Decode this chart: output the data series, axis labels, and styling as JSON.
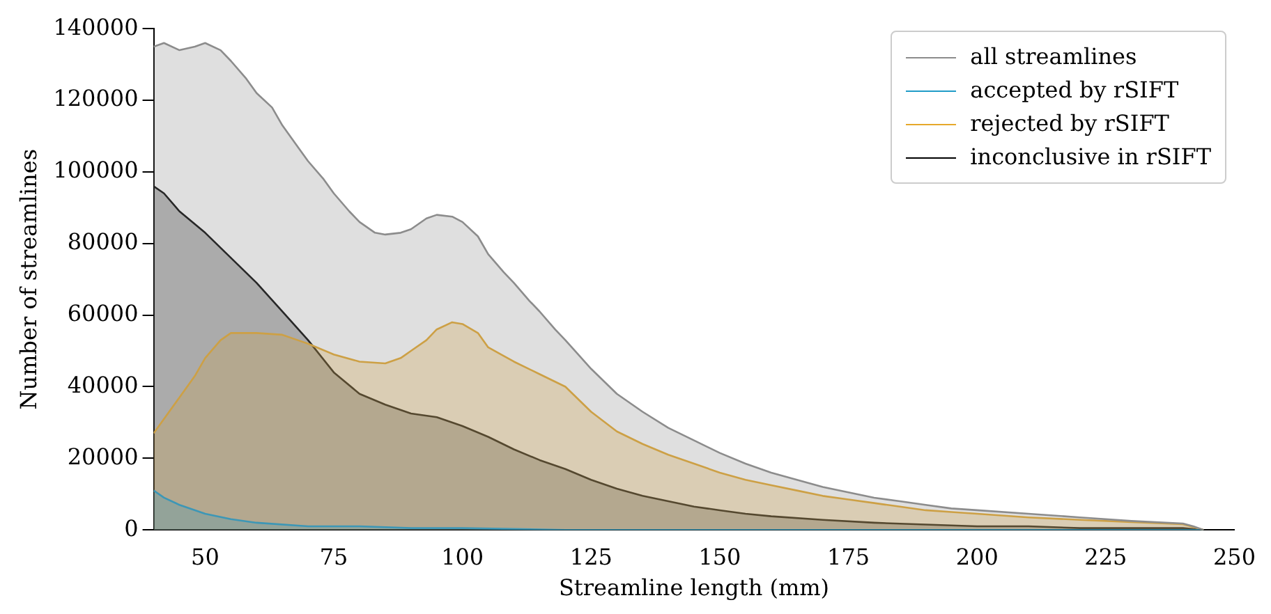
{
  "chart_data": {
    "type": "area",
    "xlabel": "Streamline length (mm)",
    "ylabel": "Number of streamlines",
    "xlim": [
      40,
      250
    ],
    "xticks": [
      50,
      75,
      100,
      125,
      150,
      175,
      200,
      225,
      250
    ],
    "ylim": [
      0,
      140000
    ],
    "yticks": [
      0,
      20000,
      40000,
      60000,
      80000,
      100000,
      120000,
      140000
    ],
    "grid": false,
    "legend": "top right",
    "marker": "none",
    "line_style": "solid",
    "series": [
      {
        "name": "all streamlines",
        "color": "#8c8c8c",
        "x": [
          40,
          42,
          45,
          48,
          50,
          53,
          55,
          58,
          60,
          63,
          65,
          68,
          70,
          73,
          75,
          78,
          80,
          83,
          85,
          88,
          90,
          93,
          95,
          98,
          100,
          103,
          105,
          108,
          110,
          113,
          115,
          118,
          120,
          125,
          130,
          135,
          140,
          145,
          150,
          155,
          160,
          165,
          170,
          175,
          180,
          185,
          190,
          195,
          200,
          210,
          220,
          230,
          240,
          242,
          244
        ],
        "values": [
          135000,
          136000,
          134000,
          135000,
          136000,
          134000,
          131000,
          126000,
          122000,
          118000,
          113000,
          107000,
          103000,
          98000,
          94000,
          89000,
          86000,
          83000,
          82500,
          83000,
          84000,
          87000,
          88000,
          87500,
          86000,
          82000,
          77000,
          72000,
          69000,
          64000,
          61000,
          56000,
          53000,
          45000,
          38000,
          33000,
          28500,
          25000,
          21500,
          18500,
          16000,
          14000,
          12000,
          10500,
          9000,
          8000,
          7000,
          6000,
          5500,
          4500,
          3500,
          2500,
          1800,
          1000,
          0
        ]
      },
      {
        "name": "accepted by rSIFT",
        "color": "#1f9bc7",
        "x": [
          40,
          42,
          45,
          50,
          55,
          60,
          70,
          80,
          90,
          100,
          120,
          150,
          200,
          244
        ],
        "values": [
          11000,
          9000,
          7000,
          4500,
          3000,
          2000,
          1000,
          1000,
          500,
          500,
          0,
          0,
          0,
          0
        ]
      },
      {
        "name": "rejected by rSIFT",
        "color": "#e6a82a",
        "x": [
          40,
          42,
          45,
          48,
          50,
          53,
          55,
          60,
          65,
          68,
          70,
          75,
          80,
          85,
          88,
          90,
          93,
          95,
          98,
          100,
          103,
          105,
          110,
          115,
          120,
          125,
          130,
          135,
          140,
          145,
          150,
          155,
          160,
          165,
          170,
          175,
          180,
          185,
          190,
          195,
          200,
          210,
          220,
          230,
          240,
          242,
          244
        ],
        "values": [
          27000,
          31000,
          37000,
          43000,
          48000,
          53000,
          55000,
          55000,
          54500,
          53000,
          52000,
          49000,
          47000,
          46500,
          48000,
          50000,
          53000,
          56000,
          58000,
          57500,
          55000,
          51000,
          47000,
          43500,
          40000,
          33000,
          27500,
          24000,
          21000,
          18500,
          16000,
          14000,
          12500,
          11000,
          9500,
          8500,
          7500,
          6500,
          5500,
          5000,
          4500,
          3500,
          2800,
          2200,
          1600,
          800,
          0
        ]
      },
      {
        "name": "inconclusive in rSIFT",
        "color": "#000000",
        "x": [
          40,
          42,
          45,
          50,
          55,
          60,
          65,
          70,
          75,
          80,
          85,
          90,
          95,
          100,
          105,
          110,
          115,
          120,
          125,
          130,
          135,
          140,
          145,
          150,
          155,
          160,
          170,
          180,
          190,
          200,
          210,
          220,
          230,
          240,
          244
        ],
        "values": [
          96000,
          94000,
          89000,
          83000,
          76000,
          69000,
          61000,
          53000,
          44000,
          38000,
          35000,
          32500,
          31500,
          29000,
          26000,
          22500,
          19500,
          17000,
          14000,
          11500,
          9500,
          8000,
          6500,
          5500,
          4500,
          3800,
          2800,
          2000,
          1500,
          1000,
          1000,
          500,
          500,
          500,
          0
        ]
      }
    ]
  }
}
